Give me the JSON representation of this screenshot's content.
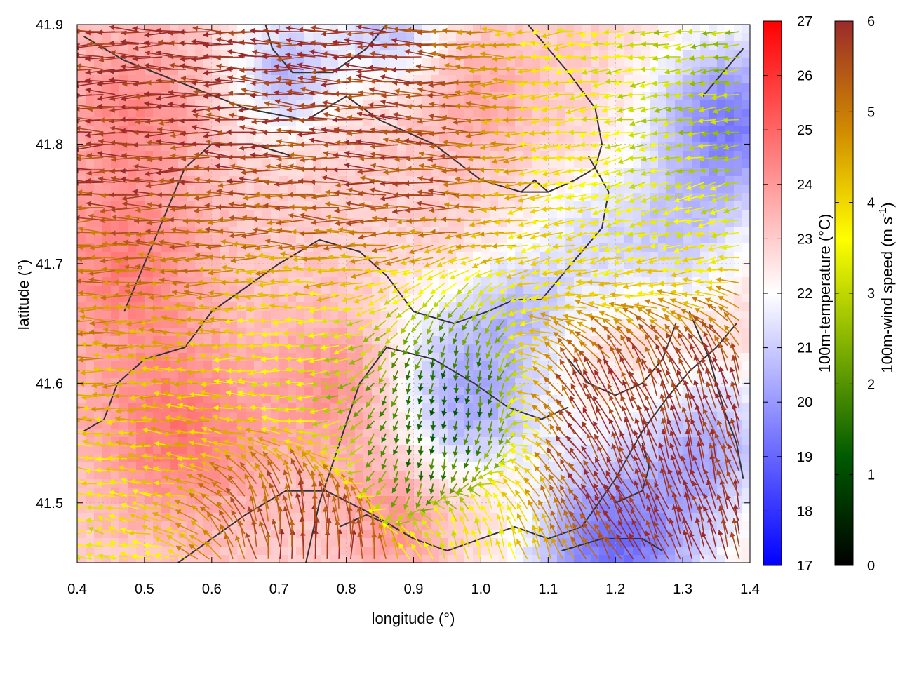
{
  "chart_data": {
    "type": "heatmap",
    "title": "",
    "xlabel": "longitude (°)",
    "ylabel": "latitude (°)",
    "xlim": [
      0.4,
      1.4
    ],
    "ylim": [
      41.45,
      41.9
    ],
    "x_ticks": [
      "0.4",
      "0.5",
      "0.6",
      "0.7",
      "0.8",
      "0.9",
      "1.0",
      "1.1",
      "1.2",
      "1.3",
      "1.4"
    ],
    "y_ticks": [
      "41.5",
      "41.6",
      "41.7",
      "41.8",
      "41.9"
    ],
    "y_tick_values": [
      41.5,
      41.6,
      41.7,
      41.8,
      41.9
    ],
    "grid": true,
    "temperature_colorbar": {
      "label": "100m-temperature (°C)",
      "range": [
        17,
        27
      ],
      "ticks": [
        "17",
        "18",
        "19",
        "20",
        "21",
        "22",
        "23",
        "24",
        "25",
        "26",
        "27"
      ],
      "colors": [
        "#0000ff",
        "#ffffff",
        "#ff0000"
      ]
    },
    "wind_colorbar": {
      "label_main": "100m-wind speed (m s",
      "label_sup": "-1",
      "label_end": ")",
      "range": [
        0,
        6
      ],
      "ticks": [
        "0",
        "1",
        "2",
        "3",
        "4",
        "5",
        "6"
      ],
      "colors": [
        "#000000",
        "#005a00",
        "#7fb000",
        "#ffff00",
        "#d08a00",
        "#9a2a2a"
      ]
    },
    "contour_lines": [
      [
        [
          0.41,
          41.89
        ],
        [
          0.47,
          41.87
        ],
        [
          0.56,
          41.85
        ],
        [
          0.65,
          41.83
        ],
        [
          0.74,
          41.82
        ],
        [
          0.8,
          41.84
        ],
        [
          0.85,
          41.82
        ],
        [
          0.93,
          41.8
        ],
        [
          1.0,
          41.77
        ],
        [
          1.06,
          41.76
        ],
        [
          1.1,
          41.76
        ],
        [
          1.14,
          41.77
        ],
        [
          1.17,
          41.78
        ],
        [
          1.18,
          41.8
        ],
        [
          1.17,
          41.83
        ],
        [
          1.13,
          41.86
        ],
        [
          1.1,
          41.88
        ],
        [
          1.07,
          41.9
        ]
      ],
      [
        [
          0.68,
          41.9
        ],
        [
          0.69,
          41.88
        ],
        [
          0.72,
          41.86
        ],
        [
          0.78,
          41.86
        ],
        [
          0.83,
          41.88
        ],
        [
          0.86,
          41.9
        ]
      ],
      [
        [
          0.41,
          41.56
        ],
        [
          0.44,
          41.57
        ],
        [
          0.46,
          41.6
        ],
        [
          0.5,
          41.62
        ],
        [
          0.56,
          41.63
        ],
        [
          0.6,
          41.66
        ],
        [
          0.65,
          41.68
        ],
        [
          0.7,
          41.7
        ],
        [
          0.76,
          41.72
        ],
        [
          0.82,
          41.71
        ],
        [
          0.86,
          41.69
        ],
        [
          0.9,
          41.66
        ],
        [
          0.96,
          41.65
        ],
        [
          1.01,
          41.66
        ],
        [
          1.05,
          41.67
        ],
        [
          1.09,
          41.67
        ],
        [
          1.12,
          41.69
        ],
        [
          1.15,
          41.71
        ],
        [
          1.18,
          41.73
        ],
        [
          1.19,
          41.76
        ],
        [
          1.16,
          41.79
        ]
      ],
      [
        [
          0.55,
          41.45
        ],
        [
          0.6,
          41.47
        ],
        [
          0.65,
          41.49
        ],
        [
          0.71,
          41.51
        ],
        [
          0.77,
          41.51
        ],
        [
          0.84,
          41.49
        ],
        [
          0.9,
          41.47
        ],
        [
          0.95,
          41.46
        ],
        [
          1.0,
          41.47
        ],
        [
          1.05,
          41.48
        ],
        [
          1.1,
          41.47
        ],
        [
          1.15,
          41.48
        ],
        [
          1.2,
          41.52
        ],
        [
          1.24,
          41.56
        ],
        [
          1.28,
          41.59
        ],
        [
          1.31,
          41.61
        ],
        [
          1.35,
          41.63
        ],
        [
          1.38,
          41.65
        ]
      ],
      [
        [
          0.74,
          41.45
        ],
        [
          0.76,
          41.5
        ],
        [
          0.79,
          41.55
        ],
        [
          0.82,
          41.6
        ],
        [
          0.86,
          41.63
        ],
        [
          0.93,
          41.62
        ],
        [
          0.99,
          41.6
        ],
        [
          1.04,
          41.58
        ],
        [
          1.09,
          41.57
        ],
        [
          1.13,
          41.58
        ]
      ],
      [
        [
          1.13,
          41.62
        ],
        [
          1.16,
          41.6
        ],
        [
          1.2,
          41.59
        ],
        [
          1.24,
          41.6
        ],
        [
          1.27,
          41.62
        ],
        [
          1.29,
          41.65
        ]
      ],
      [
        [
          0.47,
          41.66
        ],
        [
          0.5,
          41.7
        ],
        [
          0.53,
          41.74
        ],
        [
          0.56,
          41.78
        ],
        [
          0.6,
          41.8
        ],
        [
          0.66,
          41.8
        ],
        [
          0.72,
          41.79
        ]
      ],
      [
        [
          1.31,
          41.66
        ],
        [
          1.34,
          41.62
        ],
        [
          1.36,
          41.58
        ],
        [
          1.38,
          41.55
        ],
        [
          1.39,
          41.52
        ]
      ],
      [
        [
          1.12,
          41.46
        ],
        [
          1.18,
          41.47
        ],
        [
          1.24,
          41.47
        ],
        [
          1.27,
          41.46
        ]
      ],
      [
        [
          1.2,
          41.5
        ],
        [
          1.24,
          41.51
        ],
        [
          1.25,
          41.53
        ],
        [
          1.24,
          41.55
        ]
      ],
      [
        [
          0.79,
          41.48
        ],
        [
          0.83,
          41.49
        ],
        [
          0.87,
          41.48
        ],
        [
          0.9,
          41.47
        ]
      ],
      [
        [
          1.33,
          41.84
        ],
        [
          1.36,
          41.86
        ],
        [
          1.39,
          41.88
        ]
      ],
      [
        [
          1.06,
          41.76
        ],
        [
          1.08,
          41.77
        ],
        [
          1.1,
          41.76
        ]
      ]
    ],
    "temperature_field": {
      "base": 23.0,
      "anomalies": [
        {
          "x": 1.37,
          "y": 41.82,
          "amp": -3.5,
          "r": 0.12
        },
        {
          "x": 1.2,
          "y": 41.46,
          "amp": -3.8,
          "r": 0.14
        },
        {
          "x": 0.71,
          "y": 41.86,
          "amp": -2.4,
          "r": 0.08
        },
        {
          "x": 0.87,
          "y": 41.9,
          "amp": -2.2,
          "r": 0.08
        },
        {
          "x": 0.95,
          "y": 41.61,
          "amp": -2.0,
          "r": 0.12
        },
        {
          "x": 1.02,
          "y": 41.55,
          "amp": -1.8,
          "r": 0.1
        },
        {
          "x": 1.06,
          "y": 41.66,
          "amp": -1.6,
          "r": 0.08
        },
        {
          "x": 1.16,
          "y": 41.72,
          "amp": -1.4,
          "r": 0.1
        },
        {
          "x": 1.3,
          "y": 41.72,
          "amp": -1.5,
          "r": 0.1
        },
        {
          "x": 1.35,
          "y": 41.55,
          "amp": -2.2,
          "r": 0.1
        },
        {
          "x": 0.47,
          "y": 41.7,
          "amp": 1.5,
          "r": 0.12
        },
        {
          "x": 0.55,
          "y": 41.56,
          "amp": 1.7,
          "r": 0.12
        },
        {
          "x": 0.48,
          "y": 41.83,
          "amp": 1.3,
          "r": 0.1
        },
        {
          "x": 0.8,
          "y": 41.6,
          "amp": 1.4,
          "r": 0.1
        },
        {
          "x": 0.88,
          "y": 41.49,
          "amp": 1.2,
          "r": 0.08
        },
        {
          "x": 1.04,
          "y": 41.52,
          "amp": 1.4,
          "r": 0.08
        },
        {
          "x": 0.99,
          "y": 41.84,
          "amp": 0.8,
          "r": 0.08
        }
      ]
    },
    "wind_field": {
      "regimes": [
        {
          "x": 0.55,
          "y": 41.8,
          "dir_deg": 180,
          "speed": 6.0,
          "r": 0.22
        },
        {
          "x": 0.85,
          "y": 41.82,
          "dir_deg": 175,
          "speed": 6.0,
          "r": 0.2
        },
        {
          "x": 0.75,
          "y": 41.73,
          "dir_deg": 178,
          "speed": 5.2,
          "r": 0.18
        },
        {
          "x": 0.5,
          "y": 41.63,
          "dir_deg": 180,
          "speed": 4.4,
          "r": 0.18
        },
        {
          "x": 0.55,
          "y": 41.52,
          "dir_deg": 175,
          "speed": 4.0,
          "r": 0.14
        },
        {
          "x": 0.72,
          "y": 41.64,
          "dir_deg": 180,
          "speed": 2.2,
          "r": 0.12
        },
        {
          "x": 0.92,
          "y": 41.62,
          "dir_deg": 270,
          "speed": 0.8,
          "r": 0.12
        },
        {
          "x": 1.02,
          "y": 41.55,
          "dir_deg": 270,
          "speed": 0.5,
          "r": 0.08
        },
        {
          "x": 1.15,
          "y": 41.86,
          "dir_deg": 185,
          "speed": 3.6,
          "r": 0.16
        },
        {
          "x": 1.3,
          "y": 41.85,
          "dir_deg": 190,
          "speed": 2.6,
          "r": 0.12
        },
        {
          "x": 1.22,
          "y": 41.72,
          "dir_deg": 200,
          "speed": 3.4,
          "r": 0.14
        },
        {
          "x": 1.25,
          "y": 41.58,
          "dir_deg": 105,
          "speed": 6.0,
          "r": 0.14
        },
        {
          "x": 1.12,
          "y": 41.52,
          "dir_deg": 130,
          "speed": 6.0,
          "r": 0.12
        },
        {
          "x": 0.68,
          "y": 41.48,
          "dir_deg": 80,
          "speed": 6.0,
          "r": 0.1
        },
        {
          "x": 0.45,
          "y": 41.48,
          "dir_deg": 160,
          "speed": 3.0,
          "r": 0.08
        },
        {
          "x": 1.05,
          "y": 41.47,
          "dir_deg": 100,
          "speed": 3.0,
          "r": 0.08
        }
      ],
      "grid_step_lon": 0.0175,
      "grid_step_lat": 0.0105
    }
  }
}
